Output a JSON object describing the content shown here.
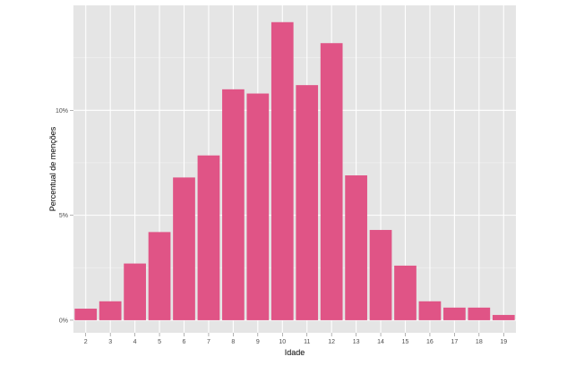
{
  "chart_data": {
    "type": "bar",
    "xlabel": "Idade",
    "ylabel": "Percentual de menções",
    "categories": [
      "2",
      "3",
      "4",
      "5",
      "6",
      "7",
      "8",
      "9",
      "10",
      "11",
      "12",
      "13",
      "14",
      "15",
      "16",
      "17",
      "18",
      "19"
    ],
    "values": [
      0.55,
      0.9,
      2.7,
      4.2,
      6.8,
      7.85,
      11.0,
      10.8,
      14.2,
      11.2,
      13.2,
      6.9,
      4.3,
      2.6,
      0.9,
      0.6,
      0.6,
      0.25
    ],
    "value_unit": "%",
    "ylim": [
      -0.6,
      15.0
    ],
    "y_ticks": [
      0,
      5,
      10
    ],
    "y_tick_labels": [
      "0%",
      "5%",
      "10%"
    ],
    "grid": true,
    "legend": "none",
    "colors": {
      "bar": "#e05486",
      "panel_background": "#e5e5e5",
      "grid_major": "#ffffff",
      "grid_minor": "#f2f2f2"
    }
  }
}
